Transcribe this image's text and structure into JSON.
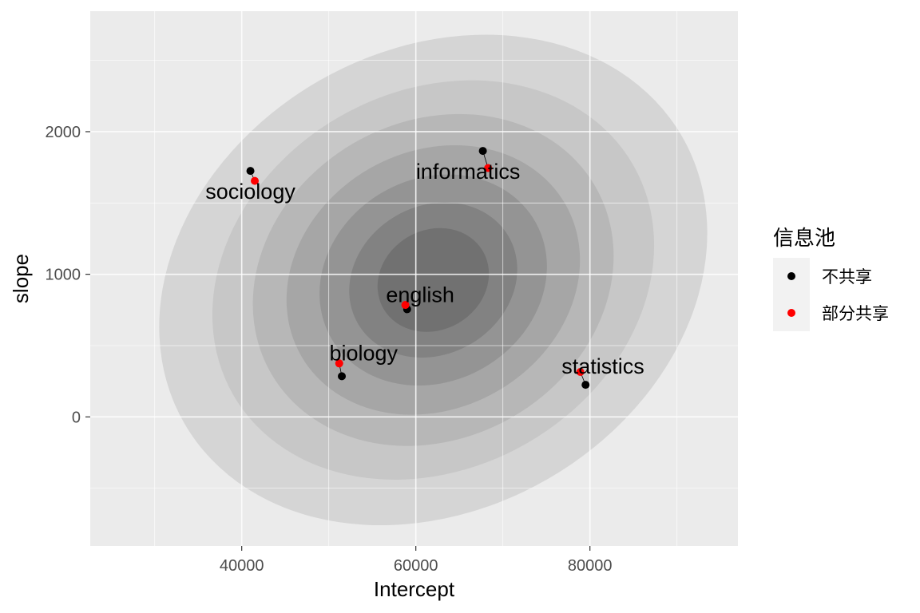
{
  "chart_data": {
    "type": "scatter",
    "xlabel": "Intercept",
    "ylabel": "slope",
    "xlim": [
      22600,
      97000
    ],
    "ylim": [
      -905,
      2845
    ],
    "x_ticks": [
      40000,
      60000,
      80000
    ],
    "x_tick_labels": [
      "40000",
      "60000",
      "80000"
    ],
    "y_ticks": [
      0,
      1000,
      2000
    ],
    "y_tick_labels": [
      "0",
      "1000",
      "2000"
    ],
    "grid": true,
    "background": "#ebebeb",
    "legend": {
      "title": "信息池",
      "position": "right",
      "entries": [
        {
          "label": "不共享",
          "color": "#000000"
        },
        {
          "label": "部分共享",
          "color": "#ff0000"
        }
      ]
    },
    "series": [
      {
        "name": "不共享",
        "color": "#000000",
        "points": [
          {
            "label": "sociology",
            "x": 41000,
            "y": 1725
          },
          {
            "label": "informatics",
            "x": 67700,
            "y": 1865
          },
          {
            "label": "english",
            "x": 59000,
            "y": 755
          },
          {
            "label": "biology",
            "x": 51500,
            "y": 285
          },
          {
            "label": "statistics",
            "x": 79500,
            "y": 225
          }
        ]
      },
      {
        "name": "部分共享",
        "color": "#ff0000",
        "points": [
          {
            "label": "sociology",
            "x": 41500,
            "y": 1655
          },
          {
            "label": "informatics",
            "x": 68300,
            "y": 1745
          },
          {
            "label": "english",
            "x": 58800,
            "y": 785
          },
          {
            "label": "biology",
            "x": 51200,
            "y": 375
          },
          {
            "label": "statistics",
            "x": 78900,
            "y": 315
          }
        ]
      }
    ],
    "labels": [
      {
        "text": "sociology",
        "x": 41000,
        "y": 1570
      },
      {
        "text": "informatics",
        "x": 66000,
        "y": 1710
      },
      {
        "text": "english",
        "x": 60500,
        "y": 845
      },
      {
        "text": "biology",
        "x": 54000,
        "y": 435
      },
      {
        "text": "statistics",
        "x": 81500,
        "y": 345
      }
    ],
    "density_contours": {
      "center": {
        "x": 62000,
        "y": 960
      },
      "fill_color": "#444444",
      "levels": [
        {
          "rx": 33000,
          "ry": 1610,
          "angle": -30
        },
        {
          "rx": 26500,
          "ry": 1320,
          "angle": -30
        },
        {
          "rx": 21500,
          "ry": 1110,
          "angle": -30
        },
        {
          "rx": 17500,
          "ry": 900,
          "angle": -30
        },
        {
          "rx": 13500,
          "ry": 710,
          "angle": -30
        },
        {
          "rx": 10000,
          "ry": 520,
          "angle": -30
        },
        {
          "rx": 6600,
          "ry": 350,
          "angle": -30
        }
      ]
    }
  }
}
